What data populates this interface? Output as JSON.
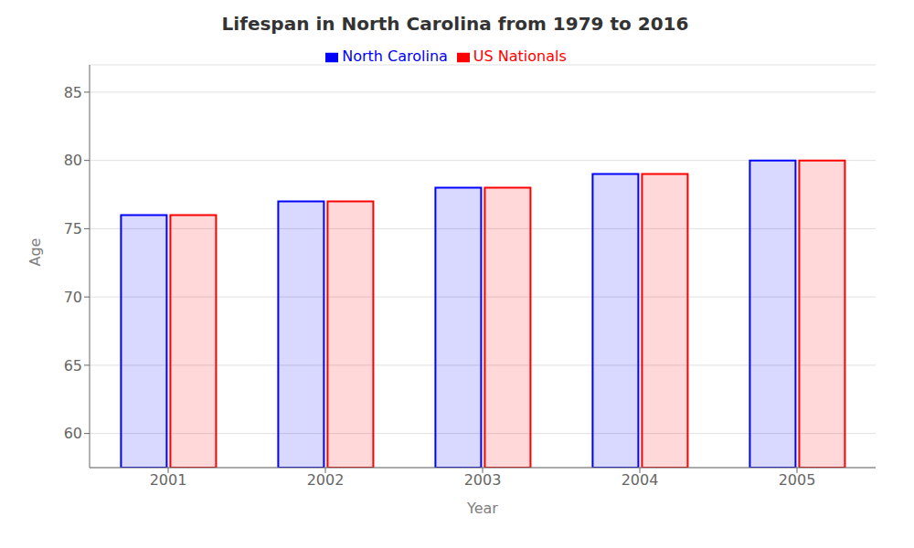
{
  "chart_data": {
    "type": "bar",
    "title": "Lifespan in North Carolina from 1979 to 2016",
    "x_label": "Year",
    "y_label": "Age",
    "categories": [
      "2001",
      "2002",
      "2003",
      "2004",
      "2005"
    ],
    "series": [
      {
        "name": "North Carolina",
        "color": "#0000ff",
        "values": [
          76,
          77,
          78,
          79,
          80
        ]
      },
      {
        "name": "US Nationals",
        "color": "#ff0000",
        "values": [
          76,
          77,
          78,
          79,
          80
        ]
      }
    ],
    "ylim": [
      57.5,
      87
    ],
    "yticks": [
      60,
      65,
      70,
      75,
      80,
      85
    ],
    "grid": true,
    "legend": "top"
  }
}
